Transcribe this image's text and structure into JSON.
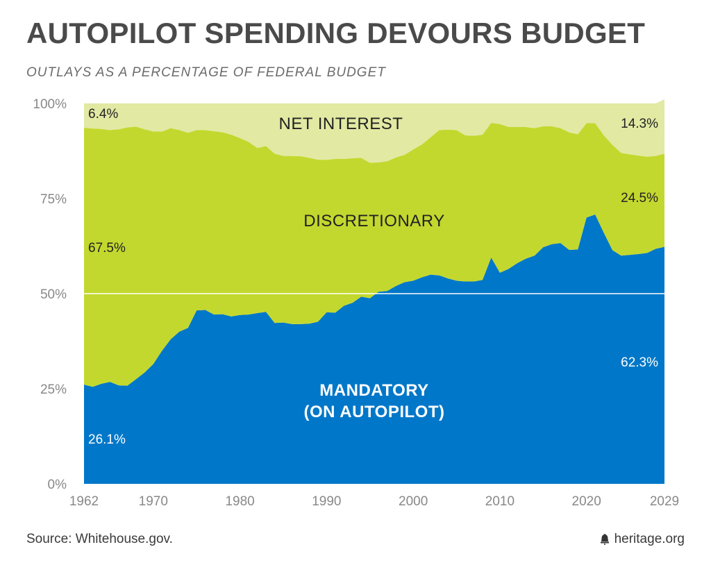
{
  "chart_data": {
    "type": "area",
    "stacked": true,
    "title": "AUTOPILOT SPENDING DEVOURS BUDGET",
    "subtitle": "OUTLAYS AS A PERCENTAGE OF FEDERAL BUDGET",
    "xlabel": "",
    "ylabel": "",
    "xlim": [
      1962,
      2029
    ],
    "ylim": [
      0,
      100
    ],
    "x_ticks": [
      "1962",
      "1970",
      "1980",
      "1990",
      "2000",
      "2010",
      "2020",
      "2029"
    ],
    "y_ticks": [
      "0%",
      "25%",
      "50%",
      "75%",
      "100%"
    ],
    "x": [
      1962,
      1963,
      1964,
      1965,
      1966,
      1967,
      1968,
      1969,
      1970,
      1971,
      1972,
      1973,
      1974,
      1975,
      1976,
      1977,
      1978,
      1979,
      1980,
      1981,
      1982,
      1983,
      1984,
      1985,
      1986,
      1987,
      1988,
      1989,
      1990,
      1991,
      1992,
      1993,
      1994,
      1995,
      1996,
      1997,
      1998,
      1999,
      2000,
      2001,
      2002,
      2003,
      2004,
      2005,
      2006,
      2007,
      2008,
      2009,
      2010,
      2011,
      2012,
      2013,
      2014,
      2015,
      2016,
      2017,
      2018,
      2019,
      2020,
      2021,
      2022,
      2023,
      2024,
      2025,
      2026,
      2027,
      2028,
      2029
    ],
    "series": [
      {
        "name": "MANDATORY (ON AUTOPILOT)",
        "color": "#0077c8",
        "values": [
          26.1,
          25.5,
          26.3,
          26.8,
          25.9,
          25.8,
          27.5,
          29.3,
          31.5,
          35.0,
          38.0,
          40.0,
          41.0,
          45.6,
          45.7,
          44.5,
          44.6,
          44.0,
          44.4,
          44.5,
          44.9,
          45.2,
          42.3,
          42.4,
          42.0,
          42.0,
          42.1,
          42.6,
          45.1,
          45.0,
          46.8,
          47.6,
          49.2,
          48.8,
          50.5,
          50.7,
          52.0,
          53.0,
          53.4,
          54.3,
          55.0,
          54.8,
          54.0,
          53.4,
          53.2,
          53.2,
          53.6,
          59.5,
          55.5,
          56.5,
          58.0,
          59.2,
          60.0,
          62.2,
          63.0,
          63.3,
          61.5,
          61.6,
          70.0,
          70.8,
          66.0,
          61.4,
          60.0,
          60.2,
          60.4,
          60.7,
          61.8,
          62.3
        ]
      },
      {
        "name": "DISCRETIONARY",
        "color": "#c3d82e",
        "values": [
          67.5,
          67.9,
          67.0,
          66.2,
          67.3,
          67.9,
          66.4,
          63.9,
          61.1,
          57.6,
          55.5,
          53.0,
          51.3,
          47.4,
          47.3,
          48.2,
          47.8,
          47.8,
          46.5,
          45.4,
          43.4,
          43.6,
          44.5,
          43.8,
          44.2,
          44.1,
          43.6,
          42.6,
          40.1,
          40.4,
          38.6,
          38.0,
          36.5,
          35.6,
          34.0,
          34.1,
          33.8,
          33.5,
          34.5,
          34.9,
          36.1,
          38.2,
          39.1,
          39.6,
          38.4,
          38.3,
          38.2,
          35.4,
          39.1,
          37.3,
          35.8,
          34.6,
          33.5,
          31.8,
          31.0,
          30.2,
          30.9,
          30.3,
          24.8,
          24.0,
          25.6,
          27.7,
          27.0,
          26.4,
          25.9,
          25.3,
          24.4,
          24.5
        ]
      },
      {
        "name": "NET INTEREST",
        "color": "#e2e9a3",
        "values": [
          6.4,
          6.6,
          6.7,
          7.0,
          6.8,
          6.3,
          6.1,
          6.8,
          7.4,
          7.4,
          6.5,
          7.0,
          7.7,
          7.0,
          7.0,
          7.3,
          7.6,
          8.2,
          9.1,
          10.1,
          11.7,
          11.2,
          13.2,
          13.8,
          13.8,
          13.9,
          14.3,
          14.8,
          14.8,
          14.6,
          14.6,
          14.4,
          14.3,
          15.6,
          15.5,
          15.2,
          14.2,
          13.5,
          12.1,
          10.8,
          8.9,
          7.0,
          6.9,
          7.0,
          8.4,
          8.5,
          8.2,
          5.1,
          5.4,
          6.2,
          6.2,
          6.2,
          6.5,
          6.0,
          6.0,
          6.5,
          7.6,
          8.1,
          5.2,
          5.2,
          8.4,
          10.9,
          13.0,
          13.4,
          13.7,
          14.0,
          13.8,
          14.3
        ]
      }
    ],
    "area_labels": {
      "net_interest": "NET INTEREST",
      "discretionary": "DISCRETIONARY",
      "mandatory_line1": "MANDATORY",
      "mandatory_line2": "(ON AUTOPILOT)"
    },
    "value_labels": {
      "net_interest_start": "6.4%",
      "net_interest_end": "14.3%",
      "discretionary_start": "67.5%",
      "discretionary_end": "24.5%",
      "mandatory_start": "26.1%",
      "mandatory_end": "62.3%"
    },
    "gridline_50": true,
    "legend": "none"
  },
  "footer": {
    "source": "Source: Whitehouse.gov.",
    "brand": "heritage.org",
    "brand_icon": "bell-icon"
  }
}
